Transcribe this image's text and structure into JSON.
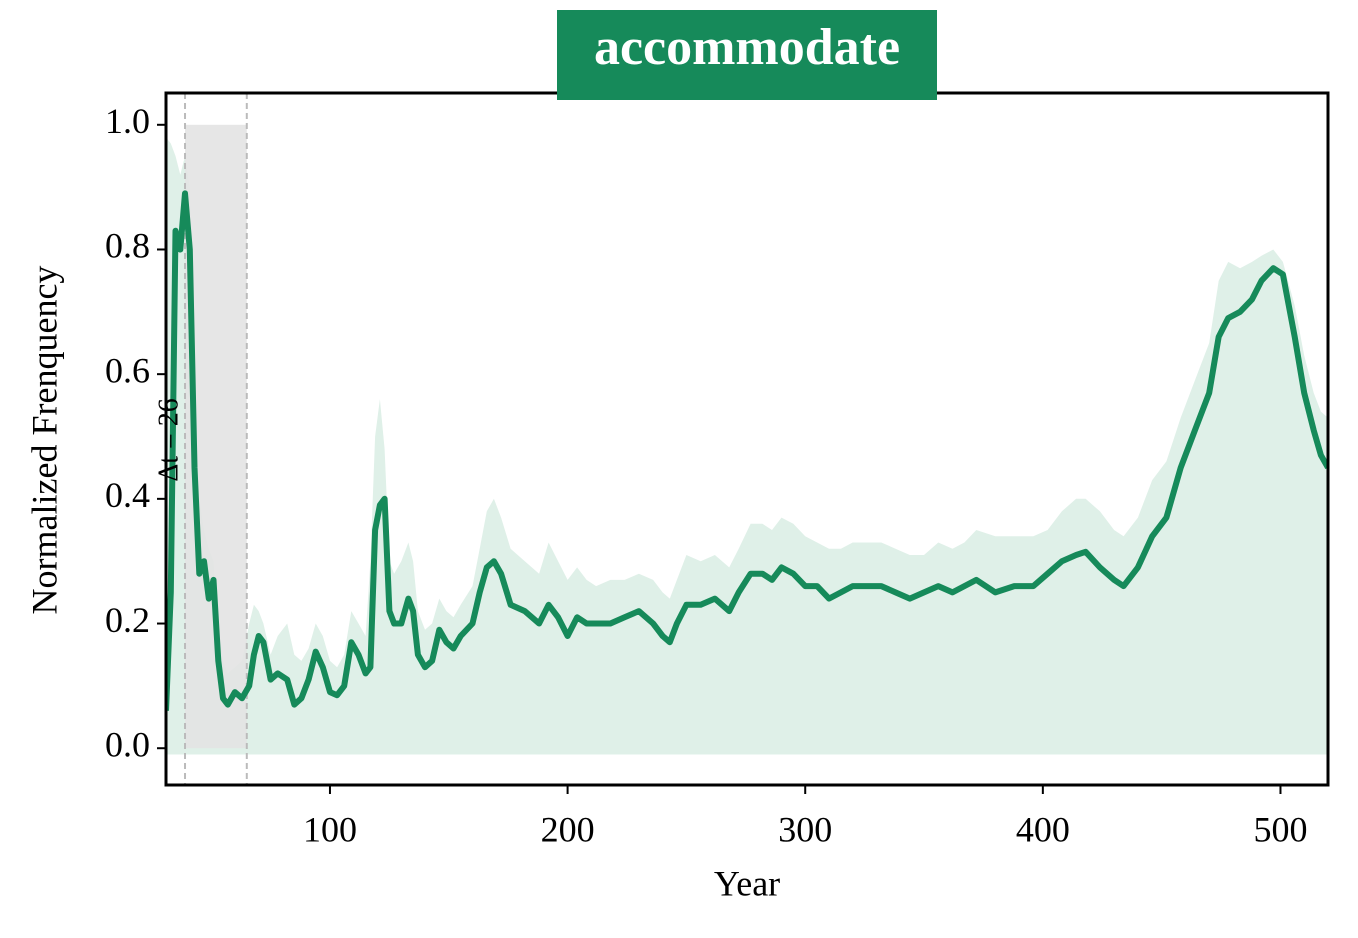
{
  "chart_data": {
    "type": "line",
    "title": "accommodate",
    "x_label": "Year",
    "y_label": "Normalized Frenquency",
    "annotation": "Δt = 26",
    "color": "#168a5a",
    "band_color": "#dff0e8",
    "span": [
      39,
      65
    ],
    "span_y": [
      0,
      1.0
    ],
    "span_color": "#e3e3e3",
    "band_lower": -0.01,
    "x": [
      31,
      33,
      35,
      37,
      39,
      41,
      43,
      45,
      47,
      49,
      51,
      53,
      55,
      57,
      60,
      63,
      66,
      68,
      70,
      72,
      75,
      78,
      82,
      85,
      88,
      91,
      94,
      97,
      100,
      103,
      106,
      109,
      112,
      115,
      117,
      119,
      121,
      123,
      125,
      127,
      130,
      133,
      135,
      137,
      140,
      143,
      146,
      149,
      152,
      155,
      160,
      163,
      166,
      169,
      172,
      176,
      182,
      188,
      192,
      196,
      200,
      204,
      208,
      212,
      218,
      224,
      230,
      236,
      240,
      243,
      246,
      250,
      256,
      262,
      268,
      272,
      277,
      282,
      286,
      290,
      295,
      300,
      305,
      310,
      315,
      320,
      326,
      332,
      338,
      344,
      350,
      356,
      362,
      367,
      372,
      380,
      388,
      396,
      402,
      408,
      414,
      418,
      424,
      430,
      434,
      440,
      446,
      452,
      458,
      464,
      470,
      474,
      478,
      483,
      488,
      492,
      497,
      501,
      506,
      510,
      514,
      517,
      520
    ],
    "values": [
      0.06,
      0.25,
      0.83,
      0.8,
      0.89,
      0.8,
      0.45,
      0.28,
      0.3,
      0.24,
      0.27,
      0.14,
      0.08,
      0.07,
      0.09,
      0.08,
      0.1,
      0.15,
      0.18,
      0.17,
      0.11,
      0.12,
      0.11,
      0.07,
      0.08,
      0.11,
      0.155,
      0.13,
      0.09,
      0.085,
      0.1,
      0.17,
      0.15,
      0.12,
      0.13,
      0.35,
      0.39,
      0.4,
      0.22,
      0.2,
      0.2,
      0.24,
      0.22,
      0.15,
      0.13,
      0.14,
      0.19,
      0.17,
      0.16,
      0.18,
      0.2,
      0.25,
      0.29,
      0.3,
      0.28,
      0.23,
      0.22,
      0.2,
      0.23,
      0.21,
      0.18,
      0.21,
      0.2,
      0.2,
      0.2,
      0.21,
      0.22,
      0.2,
      0.18,
      0.17,
      0.2,
      0.23,
      0.23,
      0.24,
      0.22,
      0.25,
      0.28,
      0.28,
      0.27,
      0.29,
      0.28,
      0.26,
      0.26,
      0.24,
      0.25,
      0.26,
      0.26,
      0.26,
      0.25,
      0.24,
      0.25,
      0.26,
      0.25,
      0.26,
      0.27,
      0.25,
      0.26,
      0.26,
      0.28,
      0.3,
      0.31,
      0.315,
      0.29,
      0.27,
      0.26,
      0.29,
      0.34,
      0.37,
      0.45,
      0.51,
      0.57,
      0.66,
      0.69,
      0.7,
      0.72,
      0.75,
      0.77,
      0.76,
      0.66,
      0.57,
      0.51,
      0.47,
      0.45
    ],
    "band_upper": [
      0.98,
      0.97,
      0.95,
      0.92,
      0.95,
      0.9,
      0.6,
      0.4,
      0.35,
      0.32,
      0.3,
      0.2,
      0.14,
      0.12,
      0.13,
      0.14,
      0.2,
      0.23,
      0.22,
      0.2,
      0.15,
      0.18,
      0.2,
      0.15,
      0.14,
      0.16,
      0.2,
      0.18,
      0.14,
      0.13,
      0.15,
      0.22,
      0.2,
      0.18,
      0.3,
      0.5,
      0.56,
      0.48,
      0.3,
      0.28,
      0.3,
      0.33,
      0.3,
      0.22,
      0.19,
      0.2,
      0.24,
      0.22,
      0.21,
      0.23,
      0.26,
      0.32,
      0.38,
      0.4,
      0.37,
      0.32,
      0.3,
      0.28,
      0.33,
      0.3,
      0.27,
      0.29,
      0.27,
      0.26,
      0.27,
      0.27,
      0.28,
      0.27,
      0.25,
      0.24,
      0.27,
      0.31,
      0.3,
      0.31,
      0.29,
      0.32,
      0.36,
      0.36,
      0.35,
      0.37,
      0.36,
      0.34,
      0.33,
      0.32,
      0.32,
      0.33,
      0.33,
      0.33,
      0.32,
      0.31,
      0.31,
      0.33,
      0.32,
      0.33,
      0.35,
      0.34,
      0.34,
      0.34,
      0.35,
      0.38,
      0.4,
      0.4,
      0.38,
      0.35,
      0.34,
      0.37,
      0.43,
      0.46,
      0.53,
      0.59,
      0.65,
      0.75,
      0.78,
      0.77,
      0.78,
      0.79,
      0.8,
      0.78,
      0.71,
      0.63,
      0.57,
      0.54,
      0.53
    ],
    "xlim": [
      31,
      520
    ],
    "ylim": [
      -0.059,
      1.051
    ],
    "xticks": [
      100,
      200,
      300,
      400,
      500
    ],
    "yticks": [
      {
        "value": 0,
        "label": "0.0"
      },
      {
        "value": 0.2,
        "label": "0.2"
      },
      {
        "value": 0.4,
        "label": "0.4"
      },
      {
        "value": 0.6,
        "label": "0.6"
      },
      {
        "value": 0.8,
        "label": "0.8"
      },
      {
        "value": 1.0,
        "label": "1.0"
      }
    ]
  }
}
